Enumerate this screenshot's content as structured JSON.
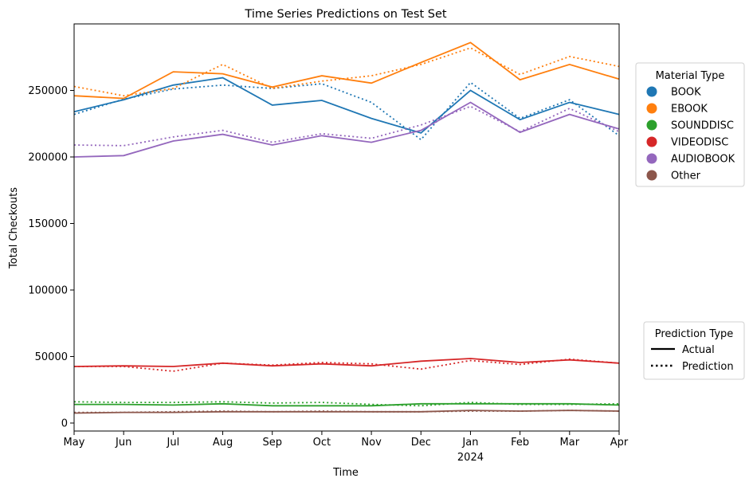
{
  "chart_data": {
    "type": "line",
    "title": "Time Series Predictions on Test Set",
    "xlabel": "Time",
    "ylabel": "Total Checkouts",
    "x": [
      "May",
      "Jun",
      "Jul",
      "Aug",
      "Sep",
      "Oct",
      "Nov",
      "Dec",
      "Jan",
      "Feb",
      "Mar",
      "Apr"
    ],
    "x_sublabel": {
      "index": 8,
      "text": "2024"
    },
    "ylim": [
      -6000,
      300000
    ],
    "yticks": [
      0,
      50000,
      100000,
      150000,
      200000,
      250000
    ],
    "grid": false,
    "legend_material": {
      "title": "Material Type",
      "placement": "right-upper",
      "items": [
        "BOOK",
        "EBOOK",
        "SOUNDDISC",
        "VIDEODISC",
        "AUDIOBOOK",
        "Other"
      ]
    },
    "legend_prediction": {
      "title": "Prediction Type",
      "placement": "right-lower",
      "items": [
        "Actual",
        "Prediction"
      ]
    },
    "series": [
      {
        "name": "BOOK",
        "color": "#1f77b4",
        "actual": [
          234000,
          243000,
          254000,
          259500,
          239000,
          242500,
          229000,
          218000,
          250000,
          228000,
          241000,
          232000
        ],
        "prediction": [
          232000,
          243500,
          251000,
          254000,
          251500,
          255000,
          241000,
          213000,
          256000,
          229000,
          243000,
          216000
        ]
      },
      {
        "name": "EBOOK",
        "color": "#ff7f0e",
        "actual": [
          246000,
          244000,
          264000,
          262500,
          252500,
          261000,
          255500,
          271000,
          286000,
          258000,
          269500,
          258500
        ],
        "prediction": [
          253000,
          246000,
          251500,
          269500,
          251500,
          257000,
          261000,
          269500,
          282000,
          262000,
          275500,
          268000
        ]
      },
      {
        "name": "SOUNDDISC",
        "color": "#2ca02c",
        "actual": [
          14000,
          14000,
          13500,
          14500,
          13000,
          13000,
          13000,
          14500,
          14500,
          14500,
          14500,
          13500
        ],
        "prediction": [
          16000,
          15500,
          15500,
          16000,
          15000,
          15500,
          14000,
          13000,
          15500,
          14000,
          14000,
          14500
        ]
      },
      {
        "name": "VIDEODISC",
        "color": "#d62728",
        "actual": [
          42500,
          43000,
          42500,
          45000,
          43000,
          44500,
          43000,
          46500,
          48500,
          45500,
          47500,
          45000
        ],
        "prediction": [
          42500,
          42500,
          39000,
          45000,
          43500,
          45500,
          44500,
          40500,
          47000,
          44000,
          48000,
          45000
        ]
      },
      {
        "name": "AUDIOBOOK",
        "color": "#9467bd",
        "actual": [
          200000,
          201000,
          212000,
          217000,
          209000,
          216000,
          211000,
          220000,
          241000,
          218500,
          232000,
          221000
        ],
        "prediction": [
          209000,
          208500,
          215000,
          220000,
          211000,
          217500,
          214000,
          224000,
          238000,
          219000,
          236500,
          219000
        ]
      },
      {
        "name": "Other",
        "color": "#8c564b",
        "actual": [
          7500,
          8000,
          8000,
          8500,
          8500,
          8500,
          8500,
          8500,
          9500,
          9000,
          9500,
          9000
        ],
        "prediction": [
          8000,
          8000,
          8500,
          9000,
          8500,
          9000,
          8500,
          8500,
          9000,
          9000,
          9500,
          9000
        ]
      }
    ]
  }
}
